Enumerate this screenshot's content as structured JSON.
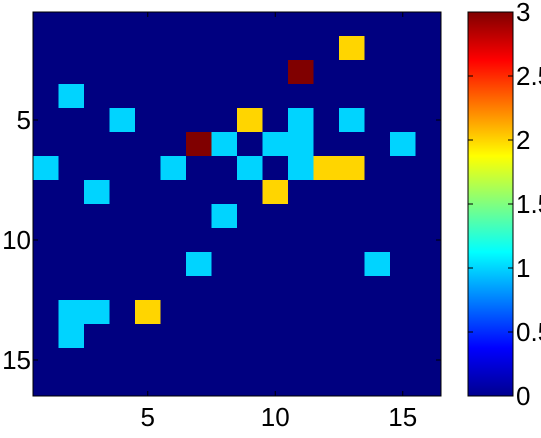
{
  "chart_data": {
    "type": "heatmap",
    "title": "",
    "xlabel": "",
    "ylabel": "",
    "rows": 16,
    "cols": 16,
    "xlim": [
      0.5,
      16.5
    ],
    "ylim": [
      0.5,
      16.5
    ],
    "y_reversed": true,
    "grid": false,
    "x_ticks": [
      5,
      10,
      15
    ],
    "y_ticks": [
      5,
      10,
      15
    ],
    "colorbar": {
      "min": 0,
      "max": 3,
      "ticks": [
        0,
        0.5,
        1,
        1.5,
        2,
        2.5,
        3
      ],
      "tick_labels": [
        "0",
        "0.5",
        "1",
        "1.5",
        "2",
        "2.5",
        "3"
      ],
      "colormap": "jet"
    },
    "cells": [
      {
        "row": 2,
        "col": 13,
        "value": 2
      },
      {
        "row": 3,
        "col": 11,
        "value": 3
      },
      {
        "row": 4,
        "col": 2,
        "value": 1
      },
      {
        "row": 5,
        "col": 4,
        "value": 1
      },
      {
        "row": 5,
        "col": 9,
        "value": 2
      },
      {
        "row": 5,
        "col": 11,
        "value": 1
      },
      {
        "row": 5,
        "col": 13,
        "value": 1
      },
      {
        "row": 6,
        "col": 7,
        "value": 3
      },
      {
        "row": 6,
        "col": 8,
        "value": 1
      },
      {
        "row": 6,
        "col": 10,
        "value": 1
      },
      {
        "row": 6,
        "col": 11,
        "value": 1
      },
      {
        "row": 6,
        "col": 15,
        "value": 1
      },
      {
        "row": 7,
        "col": 1,
        "value": 1
      },
      {
        "row": 7,
        "col": 6,
        "value": 1
      },
      {
        "row": 7,
        "col": 9,
        "value": 1
      },
      {
        "row": 7,
        "col": 11,
        "value": 1
      },
      {
        "row": 7,
        "col": 12,
        "value": 2
      },
      {
        "row": 7,
        "col": 13,
        "value": 2
      },
      {
        "row": 8,
        "col": 3,
        "value": 1
      },
      {
        "row": 8,
        "col": 10,
        "value": 2
      },
      {
        "row": 9,
        "col": 8,
        "value": 1
      },
      {
        "row": 11,
        "col": 7,
        "value": 1
      },
      {
        "row": 11,
        "col": 14,
        "value": 1
      },
      {
        "row": 13,
        "col": 2,
        "value": 1
      },
      {
        "row": 13,
        "col": 3,
        "value": 1
      },
      {
        "row": 13,
        "col": 5,
        "value": 2
      },
      {
        "row": 14,
        "col": 2,
        "value": 1
      }
    ],
    "default_value": 0
  }
}
